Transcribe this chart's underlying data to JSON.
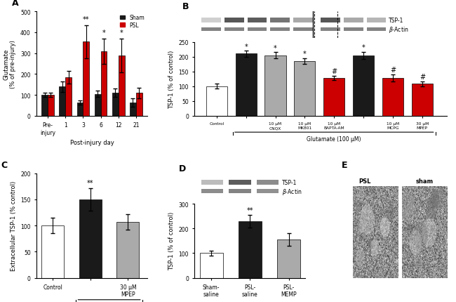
{
  "panel_A": {
    "categories": [
      "Pre-\ninjury",
      "1",
      "3",
      "6",
      "12",
      "21"
    ],
    "sham_means": [
      100,
      140,
      65,
      105,
      110,
      65
    ],
    "sham_errors": [
      10,
      25,
      10,
      15,
      20,
      20
    ],
    "psl_means": [
      100,
      185,
      355,
      310,
      290,
      110
    ],
    "psl_errors": [
      10,
      30,
      80,
      60,
      80,
      25
    ],
    "ylabel": "Glutamate\n(% of pre-injury)",
    "xlabel": "Post-injury day",
    "ylim": [
      0,
      500
    ],
    "yticks": [
      0,
      100,
      200,
      300,
      400,
      500
    ],
    "sham_color": "#1a1a1a",
    "psl_color": "#cc0000"
  },
  "panel_B": {
    "means": [
      100,
      210,
      205,
      185,
      128,
      205,
      128,
      108
    ],
    "errors": [
      8,
      10,
      10,
      10,
      7,
      12,
      12,
      8
    ],
    "colors": [
      "#ffffff",
      "#1a1a1a",
      "#aaaaaa",
      "#aaaaaa",
      "#cc0000",
      "#1a1a1a",
      "#cc0000",
      "#cc0000"
    ],
    "xlabels": [
      "Control",
      "",
      "10 μM\nCNQX",
      "10 μM\nMK801",
      "10 μM\nBAPTA-AM",
      "",
      "10 μM\nMCPG",
      "30 μM\nMPEP"
    ],
    "ylabel": "TSP-1 (% of control)",
    "ylim": [
      0,
      250
    ],
    "yticks": [
      0,
      50,
      100,
      150,
      200,
      250
    ],
    "sig_star_idx": [
      1,
      2,
      3,
      5
    ],
    "sig_hash_idx": [
      4,
      6,
      7
    ]
  },
  "panel_C": {
    "means": [
      100,
      150,
      107
    ],
    "errors": [
      15,
      22,
      15
    ],
    "colors": [
      "#ffffff",
      "#1a1a1a",
      "#aaaaaa"
    ],
    "ylabel": "Extracellular TSP-1 (% control)",
    "ylim": [
      0,
      200
    ],
    "yticks": [
      0,
      50,
      100,
      150,
      200
    ]
  },
  "panel_D": {
    "categories": [
      "Sham-\nsaline",
      "PSL-\nsaline",
      "PSL-\nMEMP"
    ],
    "means": [
      100,
      230,
      155
    ],
    "errors": [
      10,
      25,
      25
    ],
    "colors": [
      "#ffffff",
      "#1a1a1a",
      "#aaaaaa"
    ],
    "ylabel": "TSP-1 (% of control)",
    "ylim": [
      0,
      300
    ],
    "yticks": [
      0,
      100,
      200,
      300
    ]
  },
  "bg_color": "#ffffff",
  "lfs": 6,
  "tfs": 5.5,
  "panel_label_fs": 9
}
